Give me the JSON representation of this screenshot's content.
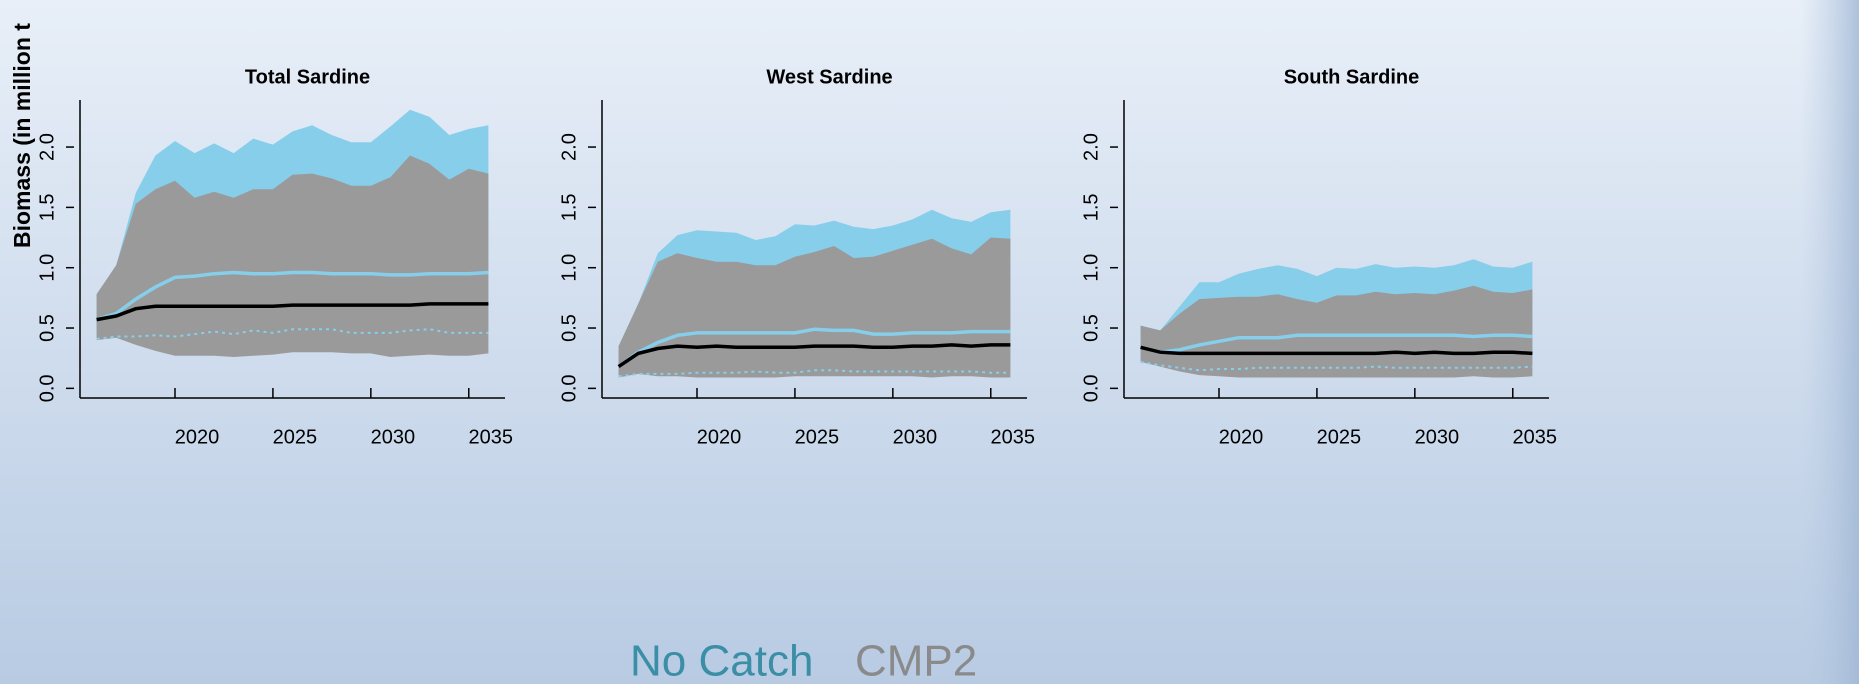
{
  "chart_data": [
    {
      "type": "band",
      "title": "Total Sardine",
      "ylabel": "Biomass (in million t",
      "x": [
        2016,
        2017,
        2018,
        2019,
        2020,
        2021,
        2022,
        2023,
        2024,
        2025,
        2026,
        2027,
        2028,
        2029,
        2030,
        2031,
        2032,
        2033,
        2034,
        2035,
        2036
      ],
      "xlim": [
        2015.15,
        2036.85
      ],
      "xticks": [
        2020,
        2025,
        2030,
        2035
      ],
      "ylim": [
        -0.08,
        2.39
      ],
      "yticks": [
        {
          "value": 0,
          "label": "0.0"
        },
        0.5,
        {
          "value": 1,
          "label": "1.0"
        },
        1.5,
        {
          "value": 2,
          "label": "2.0"
        }
      ],
      "series": [
        {
          "color": "#87ceeb",
          "line_color": "#87ceeb",
          "upper": [
            0.78,
            1.02,
            1.62,
            1.93,
            2.05,
            1.95,
            2.03,
            1.95,
            2.07,
            2.02,
            2.13,
            2.18,
            2.1,
            2.04,
            2.04,
            2.17,
            2.31,
            2.25,
            2.1,
            2.15,
            2.18
          ],
          "median": [
            0.57,
            0.62,
            0.74,
            0.84,
            0.92,
            0.93,
            0.95,
            0.96,
            0.95,
            0.95,
            0.96,
            0.96,
            0.95,
            0.95,
            0.95,
            0.94,
            0.94,
            0.95,
            0.95,
            0.95,
            0.96
          ],
          "lower": [
            0.41,
            0.43,
            0.43,
            0.44,
            0.43,
            0.45,
            0.47,
            0.45,
            0.48,
            0.46,
            0.49,
            0.49,
            0.49,
            0.46,
            0.46,
            0.46,
            0.48,
            0.49,
            0.46,
            0.46,
            0.46
          ]
        },
        {
          "color": "#9a9a9a",
          "line_color": "#000000",
          "upper": [
            0.78,
            1.02,
            1.53,
            1.65,
            1.72,
            1.58,
            1.63,
            1.58,
            1.65,
            1.65,
            1.77,
            1.78,
            1.74,
            1.68,
            1.68,
            1.75,
            1.93,
            1.86,
            1.73,
            1.82,
            1.78
          ],
          "median": [
            0.57,
            0.6,
            0.66,
            0.68,
            0.68,
            0.68,
            0.68,
            0.68,
            0.68,
            0.68,
            0.69,
            0.69,
            0.69,
            0.69,
            0.69,
            0.69,
            0.69,
            0.7,
            0.7,
            0.7,
            0.7
          ],
          "lower": [
            0.4,
            0.42,
            0.36,
            0.31,
            0.27,
            0.27,
            0.27,
            0.26,
            0.27,
            0.28,
            0.3,
            0.3,
            0.3,
            0.29,
            0.29,
            0.26,
            0.27,
            0.28,
            0.27,
            0.27,
            0.29
          ]
        }
      ]
    },
    {
      "type": "band",
      "title": "West Sardine",
      "x": [
        2016,
        2017,
        2018,
        2019,
        2020,
        2021,
        2022,
        2023,
        2024,
        2025,
        2026,
        2027,
        2028,
        2029,
        2030,
        2031,
        2032,
        2033,
        2034,
        2035,
        2036
      ],
      "xlim": [
        2015.15,
        2036.85
      ],
      "xticks": [
        2020,
        2025,
        2030,
        2035
      ],
      "ylim": [
        -0.08,
        2.39
      ],
      "yticks": [
        {
          "value": 0,
          "label": "0.0"
        },
        0.5,
        {
          "value": 1,
          "label": "1.0"
        },
        1.5,
        {
          "value": 2,
          "label": "2.0"
        }
      ],
      "series": [
        {
          "color": "#87ceeb",
          "line_color": "#87ceeb",
          "upper": [
            0.35,
            0.7,
            1.12,
            1.27,
            1.31,
            1.3,
            1.29,
            1.23,
            1.26,
            1.36,
            1.35,
            1.39,
            1.34,
            1.32,
            1.35,
            1.4,
            1.48,
            1.41,
            1.38,
            1.46,
            1.48
          ],
          "median": [
            0.18,
            0.3,
            0.38,
            0.44,
            0.46,
            0.46,
            0.46,
            0.46,
            0.46,
            0.46,
            0.49,
            0.48,
            0.48,
            0.45,
            0.45,
            0.46,
            0.46,
            0.46,
            0.47,
            0.47,
            0.47
          ],
          "lower": [
            0.1,
            0.12,
            0.12,
            0.12,
            0.13,
            0.13,
            0.13,
            0.14,
            0.13,
            0.13,
            0.15,
            0.15,
            0.14,
            0.14,
            0.14,
            0.14,
            0.14,
            0.14,
            0.14,
            0.13,
            0.13
          ]
        },
        {
          "color": "#9a9a9a",
          "line_color": "#000000",
          "upper": [
            0.35,
            0.7,
            1.05,
            1.12,
            1.08,
            1.05,
            1.05,
            1.02,
            1.02,
            1.09,
            1.13,
            1.18,
            1.08,
            1.09,
            1.14,
            1.19,
            1.24,
            1.16,
            1.11,
            1.25,
            1.24
          ],
          "median": [
            0.18,
            0.29,
            0.33,
            0.35,
            0.34,
            0.35,
            0.34,
            0.34,
            0.34,
            0.34,
            0.35,
            0.35,
            0.35,
            0.34,
            0.34,
            0.35,
            0.35,
            0.36,
            0.35,
            0.36,
            0.36
          ],
          "lower": [
            0.09,
            0.12,
            0.1,
            0.1,
            0.09,
            0.09,
            0.09,
            0.09,
            0.09,
            0.1,
            0.1,
            0.1,
            0.1,
            0.1,
            0.1,
            0.1,
            0.09,
            0.1,
            0.1,
            0.09,
            0.09
          ]
        }
      ]
    },
    {
      "type": "band",
      "title": "South Sardine",
      "x": [
        2016,
        2017,
        2018,
        2019,
        2020,
        2021,
        2022,
        2023,
        2024,
        2025,
        2026,
        2027,
        2028,
        2029,
        2030,
        2031,
        2032,
        2033,
        2034,
        2035,
        2036
      ],
      "xlim": [
        2015.15,
        2036.85
      ],
      "xticks": [
        2020,
        2025,
        2030,
        2035
      ],
      "ylim": [
        -0.08,
        2.39
      ],
      "yticks": [
        {
          "value": 0,
          "label": "0.0"
        },
        0.5,
        {
          "value": 1,
          "label": "1.0"
        },
        1.5,
        {
          "value": 2,
          "label": "2.0"
        }
      ],
      "series": [
        {
          "color": "#87ceeb",
          "line_color": "#87ceeb",
          "upper": [
            0.52,
            0.48,
            0.68,
            0.88,
            0.88,
            0.95,
            0.99,
            1.02,
            0.99,
            0.93,
            1.0,
            0.99,
            1.03,
            1.0,
            1.01,
            1.0,
            1.02,
            1.07,
            1.01,
            1.0,
            1.05
          ],
          "median": [
            0.34,
            0.3,
            0.32,
            0.36,
            0.39,
            0.42,
            0.42,
            0.42,
            0.44,
            0.44,
            0.44,
            0.44,
            0.44,
            0.44,
            0.44,
            0.44,
            0.44,
            0.43,
            0.44,
            0.44,
            0.43
          ],
          "lower": [
            0.22,
            0.19,
            0.17,
            0.15,
            0.16,
            0.16,
            0.17,
            0.17,
            0.17,
            0.17,
            0.17,
            0.17,
            0.18,
            0.17,
            0.17,
            0.17,
            0.17,
            0.17,
            0.17,
            0.17,
            0.18
          ]
        },
        {
          "color": "#9a9a9a",
          "line_color": "#000000",
          "upper": [
            0.52,
            0.48,
            0.62,
            0.74,
            0.75,
            0.76,
            0.76,
            0.78,
            0.74,
            0.71,
            0.77,
            0.77,
            0.8,
            0.78,
            0.79,
            0.78,
            0.81,
            0.85,
            0.8,
            0.79,
            0.82
          ],
          "median": [
            0.34,
            0.3,
            0.29,
            0.29,
            0.29,
            0.29,
            0.29,
            0.29,
            0.29,
            0.29,
            0.29,
            0.29,
            0.29,
            0.3,
            0.29,
            0.3,
            0.29,
            0.29,
            0.3,
            0.3,
            0.29
          ],
          "lower": [
            0.22,
            0.18,
            0.14,
            0.11,
            0.1,
            0.09,
            0.09,
            0.09,
            0.09,
            0.09,
            0.09,
            0.09,
            0.09,
            0.09,
            0.09,
            0.09,
            0.09,
            0.1,
            0.09,
            0.09,
            0.1
          ]
        }
      ]
    }
  ],
  "legend": [
    {
      "name": "No Catch",
      "color": "#3a8ea5"
    },
    {
      "name": "CMP2",
      "color": "#8a8a8a"
    }
  ]
}
